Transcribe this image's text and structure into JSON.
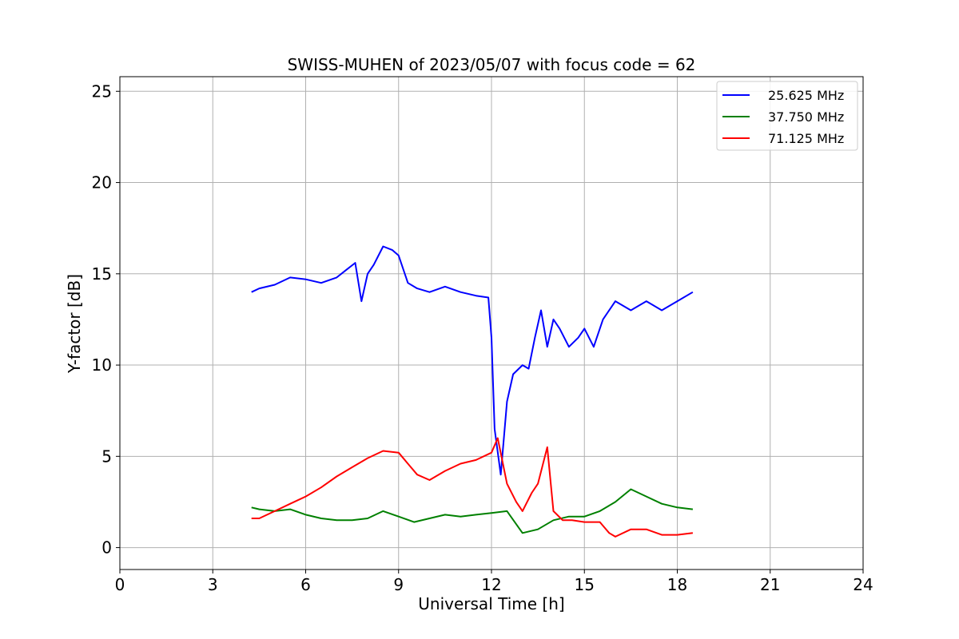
{
  "chart_data": {
    "type": "line",
    "title": "SWISS-MUHEN of 2023/05/07 with focus code = 62",
    "xlabel": "Universal Time [h]",
    "ylabel": "Y-factor [dB]",
    "xlim": [
      0,
      24
    ],
    "ylim": [
      -1.2,
      25.8
    ],
    "xticks": [
      0,
      3,
      6,
      9,
      12,
      15,
      18,
      21,
      24
    ],
    "yticks": [
      0,
      5,
      10,
      15,
      20,
      25
    ],
    "grid": true,
    "legend_position": "top-right",
    "series": [
      {
        "name": "25.625 MHz",
        "color": "#0000ff",
        "x": [
          4.25,
          4.5,
          5.0,
          5.5,
          6.0,
          6.5,
          7.0,
          7.3,
          7.6,
          7.8,
          8.0,
          8.2,
          8.5,
          8.8,
          9.0,
          9.3,
          9.6,
          10.0,
          10.5,
          11.0,
          11.5,
          11.9,
          12.0,
          12.1,
          12.3,
          12.5,
          12.7,
          13.0,
          13.2,
          13.4,
          13.6,
          13.8,
          14.0,
          14.2,
          14.5,
          14.8,
          15.0,
          15.3,
          15.6,
          16.0,
          16.5,
          17.0,
          17.5,
          18.0,
          18.5
        ],
        "y": [
          14.0,
          14.2,
          14.4,
          14.8,
          14.7,
          14.5,
          14.8,
          15.2,
          15.6,
          13.5,
          15.0,
          15.5,
          16.5,
          16.3,
          16.0,
          14.5,
          14.2,
          14.0,
          14.3,
          14.0,
          13.8,
          13.7,
          11.5,
          6.5,
          4.0,
          8.0,
          9.5,
          10.0,
          9.8,
          11.5,
          13.0,
          11.0,
          12.5,
          12.0,
          11.0,
          11.5,
          12.0,
          11.0,
          12.5,
          13.5,
          13.0,
          13.5,
          13.0,
          13.5,
          14.0
        ]
      },
      {
        "name": "37.750 MHz",
        "color": "#008000",
        "x": [
          4.25,
          4.5,
          5.0,
          5.5,
          6.0,
          6.5,
          7.0,
          7.5,
          8.0,
          8.5,
          9.0,
          9.5,
          10.0,
          10.5,
          11.0,
          11.5,
          12.0,
          12.5,
          13.0,
          13.5,
          14.0,
          14.5,
          15.0,
          15.5,
          16.0,
          16.5,
          17.0,
          17.5,
          18.0,
          18.5
        ],
        "y": [
          2.2,
          2.1,
          2.0,
          2.1,
          1.8,
          1.6,
          1.5,
          1.5,
          1.6,
          2.0,
          1.7,
          1.4,
          1.6,
          1.8,
          1.7,
          1.8,
          1.9,
          2.0,
          0.8,
          1.0,
          1.5,
          1.7,
          1.7,
          2.0,
          2.5,
          3.2,
          2.8,
          2.4,
          2.2,
          2.1
        ]
      },
      {
        "name": "71.125 MHz",
        "color": "#ff0000",
        "x": [
          4.25,
          4.5,
          5.0,
          5.5,
          6.0,
          6.5,
          7.0,
          7.5,
          8.0,
          8.5,
          9.0,
          9.3,
          9.6,
          10.0,
          10.5,
          11.0,
          11.5,
          12.0,
          12.2,
          12.5,
          12.8,
          13.0,
          13.3,
          13.5,
          13.8,
          14.0,
          14.3,
          14.6,
          15.0,
          15.5,
          15.8,
          16.0,
          16.5,
          17.0,
          17.5,
          18.0,
          18.5
        ],
        "y": [
          1.6,
          1.6,
          2.0,
          2.4,
          2.8,
          3.3,
          3.9,
          4.4,
          4.9,
          5.3,
          5.2,
          4.6,
          4.0,
          3.7,
          4.2,
          4.6,
          4.8,
          5.2,
          6.0,
          3.5,
          2.5,
          2.0,
          3.0,
          3.5,
          5.5,
          2.0,
          1.5,
          1.5,
          1.4,
          1.4,
          0.8,
          0.6,
          1.0,
          1.0,
          0.7,
          0.7,
          0.8
        ]
      }
    ]
  }
}
